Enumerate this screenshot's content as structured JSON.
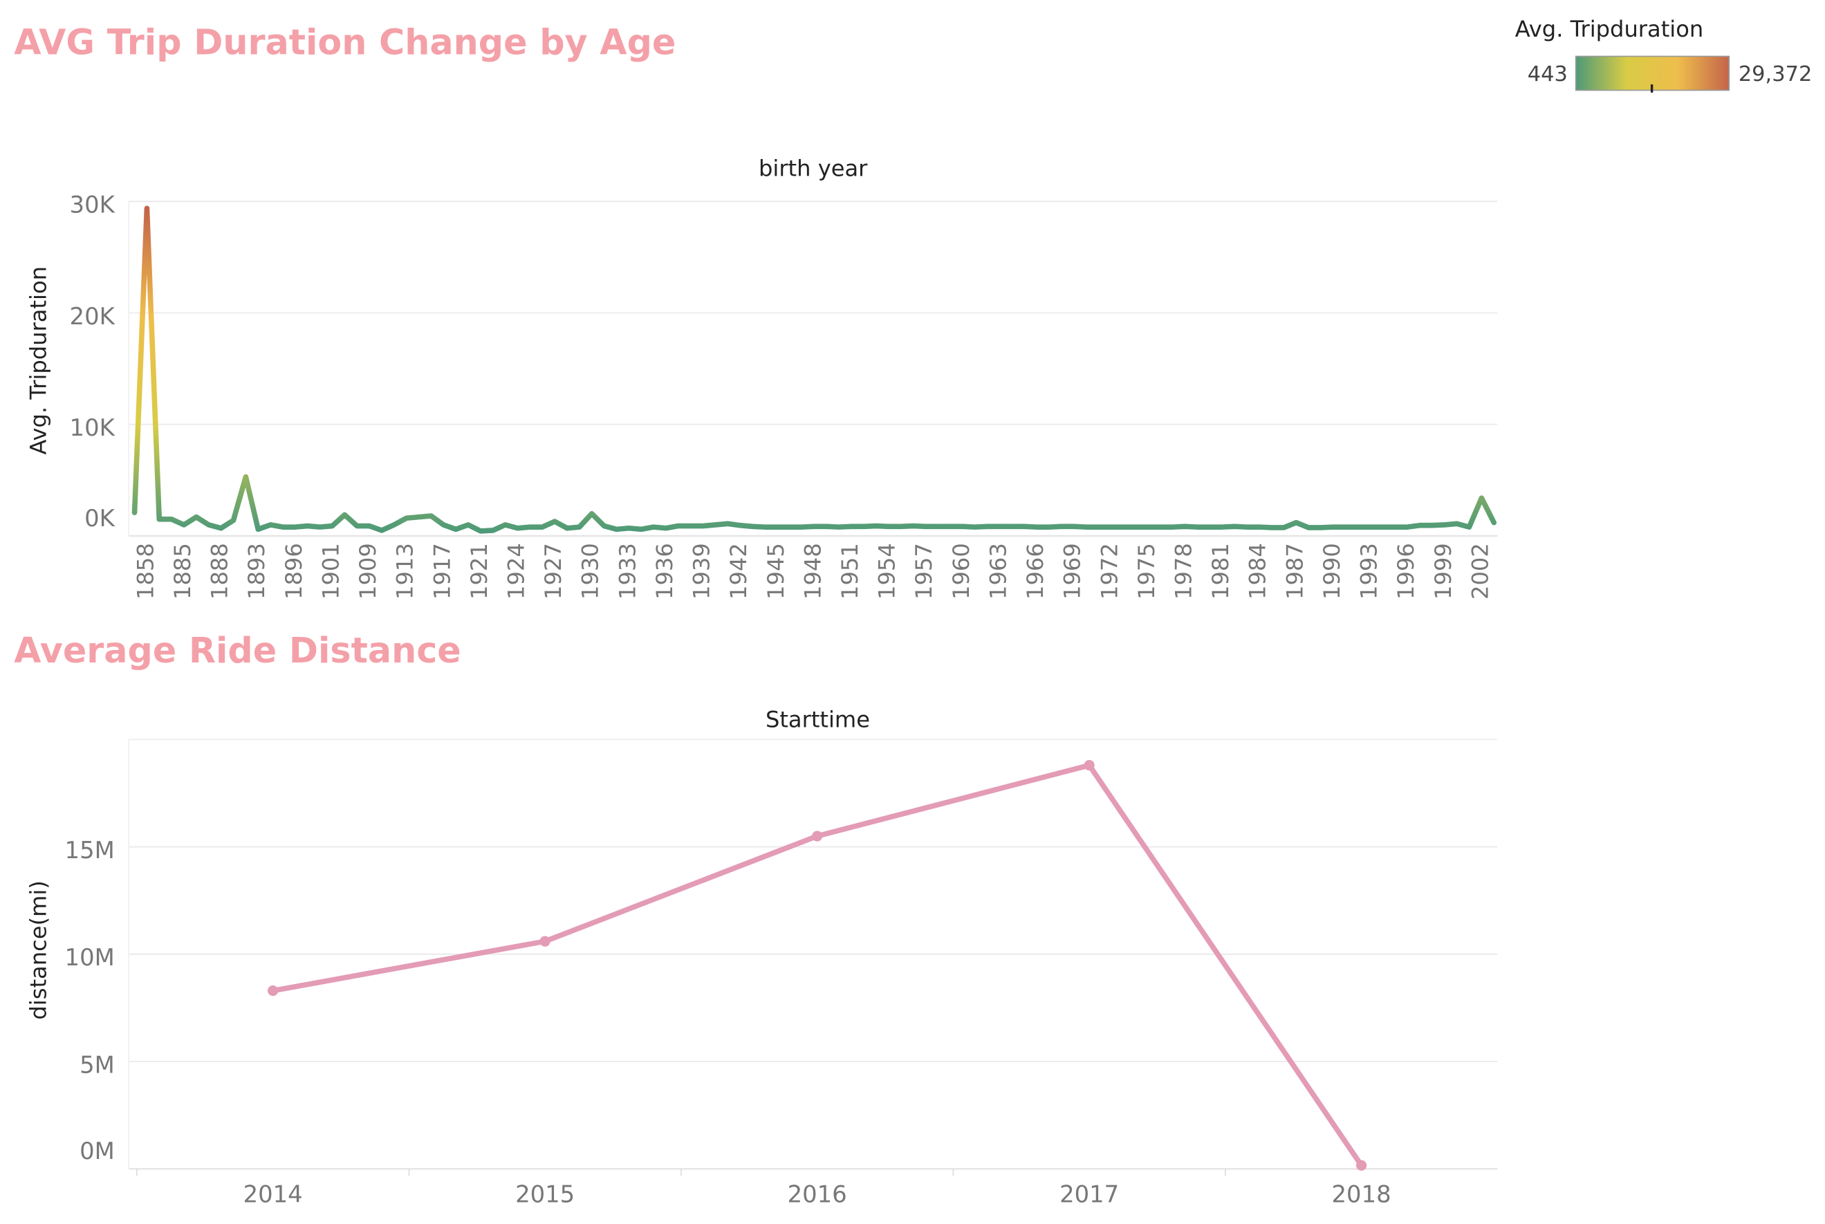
{
  "chart_data": [
    {
      "type": "line",
      "title": "AVG Trip Duration Change by Age",
      "x_label": "birth year",
      "y_label": "Avg. Tripduration",
      "categories": [
        null,
        "1858",
        null,
        null,
        "1885",
        null,
        null,
        "1888",
        null,
        null,
        "1893",
        null,
        null,
        "1896",
        null,
        null,
        "1901",
        null,
        null,
        "1909",
        null,
        null,
        "1913",
        null,
        null,
        "1917",
        null,
        null,
        "1921",
        null,
        null,
        "1924",
        null,
        null,
        "1927",
        null,
        null,
        "1930",
        null,
        null,
        "1933",
        null,
        null,
        "1936",
        null,
        null,
        "1939",
        null,
        null,
        "1942",
        null,
        null,
        "1945",
        null,
        null,
        "1948",
        null,
        null,
        "1951",
        null,
        null,
        "1954",
        null,
        null,
        "1957",
        null,
        null,
        "1960",
        null,
        null,
        "1963",
        null,
        null,
        "1966",
        null,
        null,
        "1969",
        null,
        null,
        "1972",
        null,
        null,
        "1975",
        null,
        null,
        "1978",
        null,
        null,
        "1981",
        null,
        null,
        "1984",
        null,
        null,
        "1987",
        null,
        null,
        "1990",
        null,
        null,
        "1993",
        null,
        null,
        "1996",
        null,
        null,
        "1999",
        null,
        null,
        "2002",
        null
      ],
      "values": [
        2100,
        29372,
        1500,
        1500,
        1000,
        1700,
        1000,
        700,
        1400,
        5300,
        600,
        1000,
        800,
        800,
        900,
        800,
        900,
        1900,
        900,
        900,
        500,
        1000,
        1600,
        1700,
        1800,
        1000,
        600,
        1000,
        443,
        500,
        1000,
        700,
        800,
        800,
        1300,
        700,
        800,
        2000,
        900,
        600,
        700,
        600,
        800,
        700,
        900,
        900,
        900,
        1000,
        1100,
        950,
        850,
        800,
        800,
        800,
        800,
        850,
        850,
        800,
        850,
        850,
        900,
        850,
        850,
        900,
        850,
        850,
        850,
        850,
        800,
        850,
        850,
        850,
        850,
        800,
        800,
        850,
        850,
        800,
        800,
        800,
        800,
        800,
        800,
        800,
        800,
        850,
        800,
        800,
        800,
        850,
        800,
        800,
        750,
        750,
        1200,
        750,
        750,
        800,
        800,
        800,
        800,
        800,
        800,
        800,
        950,
        950,
        1000,
        1100,
        800,
        3400,
        1200
      ],
      "ylim": [
        0,
        30000
      ],
      "yticks": [
        {
          "value": 0,
          "label": "0K"
        },
        {
          "value": 10000,
          "label": "10K"
        },
        {
          "value": 20000,
          "label": "20K"
        },
        {
          "value": 30000,
          "label": "30K"
        }
      ],
      "grid": true,
      "color_scale": {
        "title": "Avg. Tripduration",
        "min": 443,
        "max": {
          "value": 29372,
          "label": "29,372"
        },
        "colors": [
          "#4e9a78",
          "#d9cc45",
          "#eebd4c",
          "#c4644a"
        ]
      }
    },
    {
      "type": "line",
      "title": "Average Ride Distance",
      "x_label": "Starttime",
      "y_label": "distance(mi)",
      "categories": [
        "2014",
        "2015",
        "2016",
        "2017",
        "2018"
      ],
      "values": [
        8300000,
        10600000,
        15500000,
        18800000,
        160000
      ],
      "color": "#e39bb6",
      "markers": true,
      "ylim": [
        0,
        20000000
      ],
      "yticks": [
        {
          "value": 0,
          "label": "0M"
        },
        {
          "value": 5000000,
          "label": "5M"
        },
        {
          "value": 10000000,
          "label": "10M"
        },
        {
          "value": 15000000,
          "label": "15M"
        }
      ],
      "grid": true
    }
  ]
}
